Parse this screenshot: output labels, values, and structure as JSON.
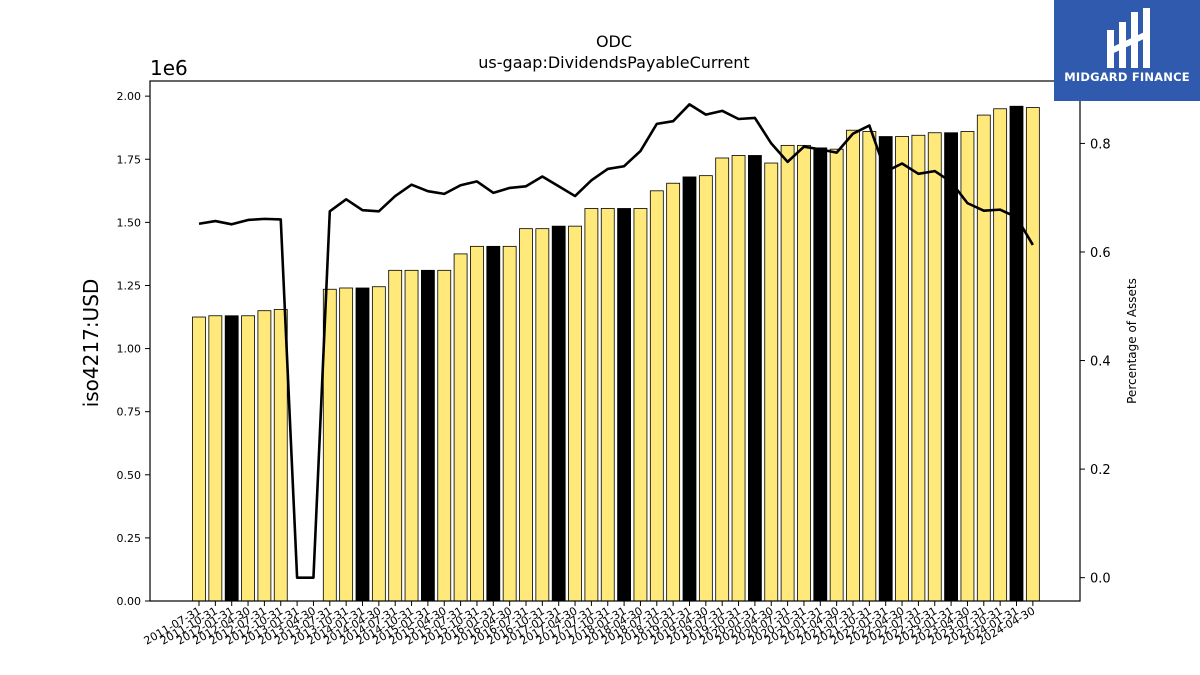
{
  "chart_data": {
    "type": "bar",
    "title": "ODC",
    "subtitle": "us-gaap:DividendsPayableCurrent",
    "ylabel": "iso4217:USD",
    "y_scale_label": "1e6",
    "y2label": "Percentage of Assets",
    "ylim": [
      0,
      2.06
    ],
    "y2lim": [
      -0.043,
      0.915
    ],
    "y_ticks": [
      "0.00",
      "0.25",
      "0.50",
      "0.75",
      "1.00",
      "1.25",
      "1.50",
      "1.75",
      "2.00"
    ],
    "y2_ticks": [
      "0.0",
      "0.2",
      "0.4",
      "0.6",
      "0.8"
    ],
    "bar_color": "#ffe97a",
    "highlight_color": "#000000",
    "line_color": "#000000",
    "x_tick_labels": [
      "2011-07-31",
      "2011-10-31",
      "2012-01-31",
      "2012-04-30",
      "2012-07-31",
      "2012-10-31",
      "2013-01-31",
      "2013-04-30",
      "2013-07-31",
      "2013-10-31",
      "2014-01-31",
      "2014-04-30",
      "2014-07-31",
      "2014-10-31",
      "2015-01-31",
      "2015-04-30",
      "2015-07-31",
      "2015-10-31",
      "2016-01-31",
      "2016-04-30",
      "2016-07-31",
      "2016-10-31",
      "2017-01-31",
      "2017-04-30",
      "2017-07-31",
      "2017-10-31",
      "2018-01-31",
      "2018-04-30",
      "2018-07-31",
      "2018-10-31",
      "2019-01-31",
      "2019-04-30",
      "2019-07-31",
      "2019-10-31",
      "2020-01-31",
      "2020-04-30",
      "2020-07-31",
      "2020-10-31",
      "2021-01-31",
      "2021-04-30",
      "2021-07-31",
      "2021-10-31",
      "2022-01-31",
      "2022-04-30",
      "2022-07-31",
      "2022-10-31",
      "2023-01-31",
      "2023-04-30",
      "2023-07-31",
      "2023-10-31",
      "2024-01-31",
      "2024-04-30"
    ],
    "values": [
      1.125,
      1.13,
      1.13,
      1.13,
      1.15,
      1.155,
      0,
      0,
      1.235,
      1.24,
      1.24,
      1.245,
      1.31,
      1.31,
      1.31,
      1.31,
      1.375,
      1.405,
      1.405,
      1.405,
      1.475,
      1.475,
      1.485,
      1.485,
      1.555,
      1.555,
      1.555,
      1.555,
      1.625,
      1.655,
      1.68,
      1.685,
      1.755,
      1.765,
      1.765,
      1.735,
      1.805,
      1.805,
      1.795,
      1.79,
      1.865,
      1.86,
      1.84,
      1.84,
      1.845,
      1.855,
      1.855,
      1.86,
      1.925,
      1.95,
      1.96,
      1.955
    ],
    "highlighted": [
      false,
      false,
      true,
      false,
      false,
      false,
      false,
      false,
      false,
      false,
      true,
      false,
      false,
      false,
      true,
      false,
      false,
      false,
      true,
      false,
      false,
      false,
      true,
      false,
      false,
      false,
      true,
      false,
      false,
      false,
      true,
      false,
      false,
      false,
      true,
      false,
      false,
      false,
      true,
      false,
      false,
      false,
      true,
      false,
      false,
      false,
      true,
      false,
      false,
      false,
      true,
      false
    ],
    "pct_assets": [
      0.652,
      0.657,
      0.651,
      0.659,
      0.661,
      0.66,
      0,
      0,
      0.675,
      0.697,
      0.677,
      0.675,
      0.703,
      0.724,
      0.712,
      0.707,
      0.723,
      0.73,
      0.709,
      0.718,
      0.721,
      0.739,
      0.721,
      0.703,
      0.732,
      0.753,
      0.758,
      0.786,
      0.836,
      0.841,
      0.872,
      0.853,
      0.86,
      0.845,
      0.847,
      0.8,
      0.766,
      0.794,
      0.789,
      0.783,
      0.818,
      0.833,
      0.748,
      0.763,
      0.744,
      0.749,
      0.729,
      0.69,
      0.676,
      0.678,
      0.664,
      0.613
    ]
  },
  "logo": {
    "text": "MIDGARD FINANCE"
  }
}
